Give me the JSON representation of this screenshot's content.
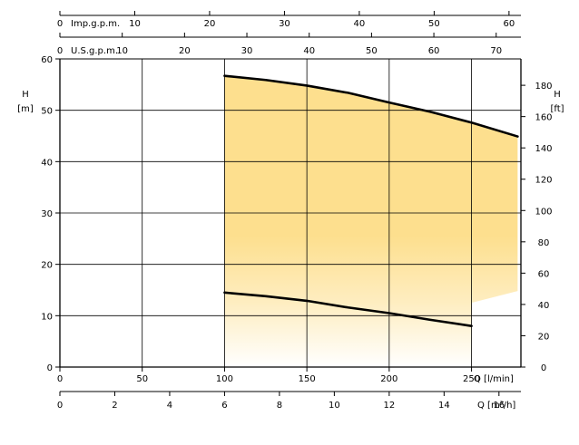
{
  "chart_data": {
    "type": "area",
    "main_x": {
      "label": "Q [l/min]",
      "range": [
        0,
        280
      ],
      "ticks": [
        "0",
        "50",
        "100",
        "150",
        "200",
        "250"
      ],
      "tick_values": [
        0,
        50,
        100,
        150,
        200,
        250
      ]
    },
    "left_y": {
      "label_top": "H",
      "label_unit": "[m]",
      "range": [
        0,
        60
      ],
      "ticks": [
        "0",
        "10",
        "20",
        "30",
        "40",
        "50",
        "60"
      ],
      "tick_values": [
        0,
        10,
        20,
        30,
        40,
        50,
        60
      ]
    },
    "right_y": {
      "label_top": "H",
      "label_unit": "[ft]",
      "factor_from_m": 3.28084,
      "ticks": [
        "0",
        "20",
        "40",
        "60",
        "80",
        "100",
        "120",
        "140",
        "160",
        "180"
      ],
      "tick_values": [
        0,
        20,
        40,
        60,
        80,
        100,
        120,
        140,
        160,
        180
      ]
    },
    "top_axes": [
      {
        "label": "U.S.g.p.m.",
        "liters_per_unit": 3.78541,
        "ticks": [
          "0",
          "10",
          "20",
          "30",
          "40",
          "50",
          "60",
          "70"
        ],
        "tick_values": [
          0,
          10,
          20,
          30,
          40,
          50,
          60,
          70
        ]
      },
      {
        "label": "Imp.g.p.m.",
        "liters_per_unit": 4.54609,
        "ticks": [
          "0",
          "10",
          "20",
          "30",
          "40",
          "50",
          "60"
        ],
        "tick_values": [
          0,
          10,
          20,
          30,
          40,
          50,
          60
        ]
      }
    ],
    "bottom_axis": {
      "label": "Q [m³/h]",
      "lpm_per_unit": 16.6667,
      "ticks": [
        "0",
        "2",
        "4",
        "6",
        "8",
        "10",
        "12",
        "14",
        "16"
      ],
      "tick_values": [
        0,
        2,
        4,
        6,
        8,
        10,
        12,
        14,
        16
      ]
    },
    "series": [
      {
        "x": [
          100,
          125,
          150,
          175,
          200,
          225,
          250,
          278
        ],
        "y": [
          56.7,
          55.9,
          54.8,
          53.4,
          51.5,
          49.7,
          47.6,
          44.9
        ]
      },
      {
        "x": [
          100,
          125,
          150,
          175,
          200,
          225,
          250
        ],
        "y": [
          14.5,
          13.8,
          12.9,
          11.6,
          10.5,
          9.2,
          8.0
        ]
      }
    ],
    "area": {
      "x_start": 100,
      "x_end": 278,
      "top_y": [
        56.7,
        55.9,
        54.8,
        53.4,
        51.5,
        49.7,
        47.6,
        44.9
      ],
      "top_x": [
        100,
        125,
        150,
        175,
        200,
        225,
        250,
        278
      ],
      "right_bottom_start": [
        250,
        12.5
      ],
      "right_bottom_end": [
        278,
        14.8
      ],
      "color": "#fddf8e"
    },
    "grid": true,
    "colors": {
      "curve": "#000000",
      "grid": "#000000",
      "fill": "#fddf8e"
    }
  }
}
